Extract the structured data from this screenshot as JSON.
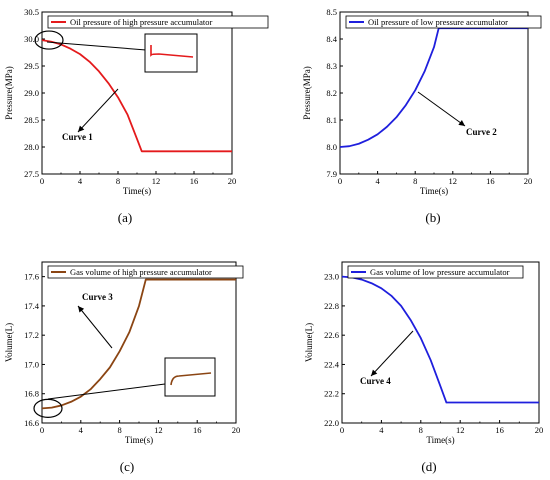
{
  "chart_data": [
    {
      "panel": "(a)",
      "type": "line",
      "xlabel": "Time(s)",
      "ylabel": "Pressure(MPa)",
      "xlim": [
        0,
        20
      ],
      "ylim": [
        27.5,
        30.5
      ],
      "xticks": [
        "0",
        "4",
        "8",
        "12",
        "16",
        "20"
      ],
      "yticks": [
        "27.5",
        "28.0",
        "28.5",
        "29.0",
        "29.5",
        "30.0",
        "30.5"
      ],
      "grid": false,
      "legend_position": "top-left",
      "series": [
        {
          "name": "Oil pressure of high pressure accumulator",
          "color": "#e41a1c",
          "x": [
            0,
            1,
            2,
            3,
            4,
            5,
            6,
            7,
            8,
            9,
            10,
            10.5,
            12,
            16,
            20
          ],
          "y": [
            29.98,
            29.95,
            29.9,
            29.82,
            29.72,
            29.58,
            29.4,
            29.18,
            28.92,
            28.6,
            28.15,
            27.92,
            27.92,
            27.92,
            27.92
          ]
        }
      ],
      "annotations": [
        {
          "text": "Curve 1"
        }
      ],
      "has_zoom_inset": true
    },
    {
      "panel": "(b)",
      "type": "line",
      "xlabel": "Time(s)",
      "ylabel": "Pressure(MPa)",
      "xlim": [
        0,
        20
      ],
      "ylim": [
        7.9,
        8.5
      ],
      "xticks": [
        "0",
        "4",
        "8",
        "12",
        "16",
        "20"
      ],
      "yticks": [
        "7.9",
        "8.0",
        "8.1",
        "8.2",
        "8.3",
        "8.4",
        "8.5"
      ],
      "grid": false,
      "legend_position": "top-left",
      "series": [
        {
          "name": "Oil pressure of low pressure accumulator",
          "color": "#1f1fdd",
          "x": [
            0,
            1,
            2,
            3,
            4,
            5,
            6,
            7,
            8,
            9,
            10,
            10.5,
            12,
            16,
            20
          ],
          "y": [
            8.0,
            8.003,
            8.012,
            8.027,
            8.047,
            8.075,
            8.11,
            8.155,
            8.21,
            8.28,
            8.37,
            8.44,
            8.44,
            8.44,
            8.44
          ]
        }
      ],
      "annotations": [
        {
          "text": "Curve 2"
        }
      ],
      "has_zoom_inset": false
    },
    {
      "panel": "(c)",
      "type": "line",
      "xlabel": "Time(s)",
      "ylabel": "Volume(L)",
      "xlim": [
        0,
        20
      ],
      "ylim": [
        16.6,
        17.7
      ],
      "xticks": [
        "0",
        "4",
        "8",
        "12",
        "16",
        "20"
      ],
      "yticks": [
        "16.6",
        "16.8",
        "17.0",
        "17.2",
        "17.4",
        "17.6"
      ],
      "grid": false,
      "legend_position": "top-left",
      "series": [
        {
          "name": "Gas volume of high pressure accumulator",
          "color": "#8b4513",
          "x": [
            0,
            1,
            2,
            3,
            4,
            5,
            6,
            7,
            8,
            9,
            10,
            10.7,
            12,
            16,
            20
          ],
          "y": [
            16.7,
            16.705,
            16.72,
            16.745,
            16.78,
            16.83,
            16.9,
            16.98,
            17.09,
            17.22,
            17.4,
            17.58,
            17.58,
            17.58,
            17.58
          ]
        }
      ],
      "annotations": [
        {
          "text": "Curve 3"
        }
      ],
      "has_zoom_inset": true
    },
    {
      "panel": "(d)",
      "type": "line",
      "xlabel": "Time(s)",
      "ylabel": "Volume(L)",
      "xlim": [
        0,
        20
      ],
      "ylim": [
        22.0,
        23.1
      ],
      "xticks": [
        "0",
        "4",
        "8",
        "12",
        "16",
        "20"
      ],
      "yticks": [
        "22.0",
        "22.2",
        "22.4",
        "22.6",
        "22.8",
        "23.0"
      ],
      "grid": false,
      "legend_position": "top-left",
      "series": [
        {
          "name": "Gas volume of low pressure accumulator",
          "color": "#1f1fdd",
          "x": [
            0,
            1,
            2,
            3,
            4,
            5,
            6,
            7,
            8,
            9,
            10,
            10.6,
            12,
            16,
            20
          ],
          "y": [
            23.0,
            22.995,
            22.98,
            22.955,
            22.92,
            22.87,
            22.8,
            22.7,
            22.58,
            22.43,
            22.25,
            22.14,
            22.14,
            22.14,
            22.14
          ]
        }
      ],
      "annotations": [
        {
          "text": "Curve 4"
        }
      ],
      "has_zoom_inset": false
    }
  ]
}
